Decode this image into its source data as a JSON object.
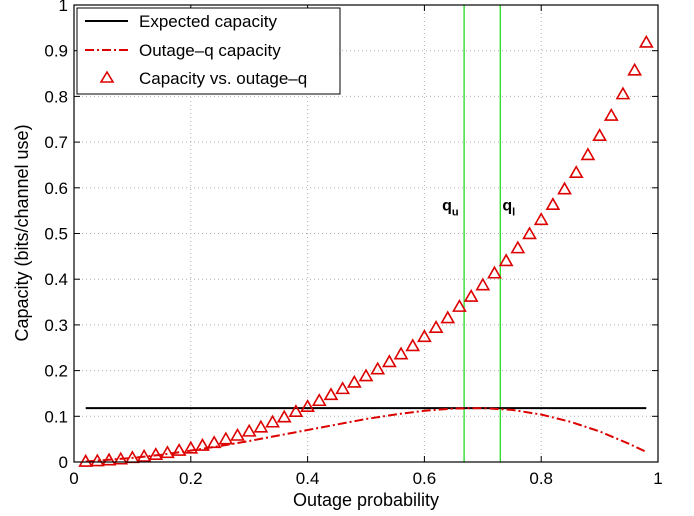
{
  "chart_data": {
    "type": "line",
    "title": "",
    "xlabel": "Outage probability",
    "ylabel": "Capacity (bits/channel use)",
    "xlim": [
      0,
      1
    ],
    "ylim": [
      0,
      1
    ],
    "xticks": [
      0,
      0.2,
      0.4,
      0.6,
      0.8,
      1
    ],
    "xtick_labels": [
      "0",
      "0.2",
      "0.4",
      "0.6",
      "0.8",
      "1"
    ],
    "yticks": [
      0,
      0.1,
      0.2,
      0.3,
      0.4,
      0.5,
      0.6,
      0.7,
      0.8,
      0.9,
      1
    ],
    "ytick_labels": [
      "0",
      "0.1",
      "0.2",
      "0.3",
      "0.4",
      "0.5",
      "0.6",
      "0.7",
      "0.8",
      "0.9",
      "1"
    ],
    "grid": true,
    "legend_position": "top-left",
    "series": [
      {
        "name": "Expected capacity",
        "style": "solid",
        "color": "#000000",
        "x": [
          0.02,
          0.98
        ],
        "y": [
          0.118,
          0.118
        ]
      },
      {
        "name": "Outage–q capacity",
        "style": "dashdot",
        "color": "#dd0000",
        "x": [
          0.02,
          0.05,
          0.1,
          0.15,
          0.2,
          0.25,
          0.3,
          0.35,
          0.4,
          0.45,
          0.5,
          0.55,
          0.6,
          0.65,
          0.7,
          0.75,
          0.8,
          0.85,
          0.9,
          0.95,
          0.98
        ],
        "y": [
          0.001,
          0.004,
          0.009,
          0.016,
          0.025,
          0.035,
          0.046,
          0.058,
          0.07,
          0.082,
          0.094,
          0.104,
          0.112,
          0.117,
          0.118,
          0.114,
          0.104,
          0.088,
          0.067,
          0.04,
          0.022
        ]
      },
      {
        "name": "Capacity vs. outage–q",
        "style": "triangle-markers",
        "color": "#dd0000",
        "x": [
          0.02,
          0.04,
          0.06,
          0.08,
          0.1,
          0.12,
          0.14,
          0.16,
          0.18,
          0.2,
          0.22,
          0.24,
          0.26,
          0.28,
          0.3,
          0.32,
          0.34,
          0.36,
          0.38,
          0.4,
          0.42,
          0.44,
          0.46,
          0.48,
          0.5,
          0.52,
          0.54,
          0.56,
          0.58,
          0.6,
          0.62,
          0.64,
          0.66,
          0.68,
          0.7,
          0.72,
          0.74,
          0.76,
          0.78,
          0.8,
          0.82,
          0.84,
          0.86,
          0.88,
          0.9,
          0.92,
          0.94,
          0.96,
          0.98
        ],
        "y": [
          0.001,
          0.002,
          0.004,
          0.006,
          0.009,
          0.012,
          0.016,
          0.02,
          0.025,
          0.03,
          0.036,
          0.042,
          0.05,
          0.058,
          0.067,
          0.076,
          0.087,
          0.098,
          0.11,
          0.121,
          0.134,
          0.147,
          0.16,
          0.174,
          0.188,
          0.203,
          0.219,
          0.236,
          0.254,
          0.274,
          0.294,
          0.315,
          0.34,
          0.362,
          0.387,
          0.413,
          0.44,
          0.468,
          0.499,
          0.53,
          0.563,
          0.597,
          0.633,
          0.672,
          0.714,
          0.758,
          0.805,
          0.857,
          0.918
        ]
      }
    ],
    "vertical_lines": [
      {
        "x": 0.668,
        "color": "#33dd33",
        "label_main": "q",
        "label_sub": "u"
      },
      {
        "x": 0.73,
        "color": "#33dd33",
        "label_main": "q",
        "label_sub": "l"
      }
    ],
    "annotation_y": 0.55
  }
}
